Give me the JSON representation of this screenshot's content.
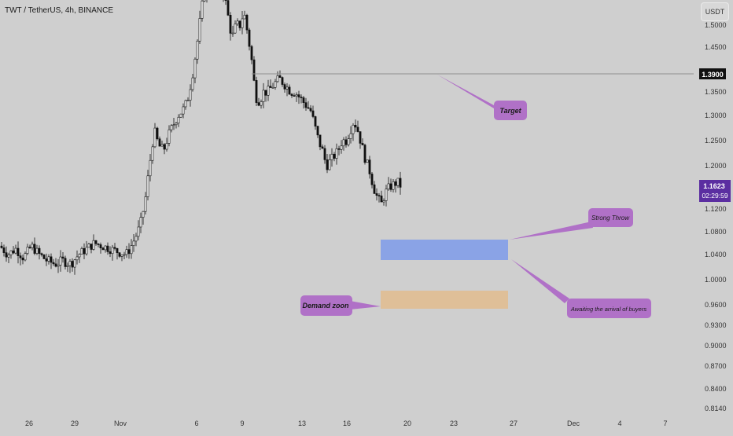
{
  "header": {
    "symbol": "TWT / TetherUS, 4h, BINANCE",
    "currency": "USDT"
  },
  "colors": {
    "background": "#cfcfcf",
    "candle": "#111111",
    "bubble": "#b071c7",
    "blue_zone": "#8aa3e6",
    "demand_zone": "#dfbf98",
    "price_tag": "#5b2ea1"
  },
  "chart_data": {
    "type": "candlestick",
    "title": "TWT / TetherUS, 4h, BINANCE",
    "y_axis": {
      "scale": "log",
      "range": [
        0.8,
        1.62
      ],
      "ticks": [
        "1.5000",
        "1.4500",
        "1.3500",
        "1.3000",
        "1.2500",
        "1.2000",
        "1.1200",
        "1.0800",
        "1.0400",
        "1.0000",
        "0.9600",
        "0.9300",
        "0.9000",
        "0.8700",
        "0.8400",
        "0.8140"
      ]
    },
    "x_axis": {
      "ticks": [
        "26",
        "29",
        "Nov",
        "6",
        "9",
        "13",
        "16",
        "20",
        "23",
        "27",
        "Dec",
        "4",
        "7"
      ]
    },
    "price_path": [
      [
        0,
        1.055
      ],
      [
        10,
        1.04
      ],
      [
        20,
        1.05
      ],
      [
        30,
        1.035
      ],
      [
        40,
        1.055
      ],
      [
        50,
        1.04
      ],
      [
        60,
        1.03
      ],
      [
        70,
        1.025
      ],
      [
        80,
        1.03
      ],
      [
        90,
        1.025
      ],
      [
        100,
        1.04
      ],
      [
        110,
        1.05
      ],
      [
        120,
        1.06
      ],
      [
        130,
        1.055
      ],
      [
        140,
        1.05
      ],
      [
        150,
        1.045
      ],
      [
        160,
        1.04
      ],
      [
        165,
        1.05
      ],
      [
        172,
        1.07
      ],
      [
        178,
        1.09
      ],
      [
        184,
        1.13
      ],
      [
        190,
        1.2
      ],
      [
        196,
        1.27
      ],
      [
        202,
        1.24
      ],
      [
        208,
        1.23
      ],
      [
        214,
        1.26
      ],
      [
        220,
        1.28
      ],
      [
        226,
        1.3
      ],
      [
        232,
        1.31
      ],
      [
        238,
        1.33
      ],
      [
        244,
        1.38
      ],
      [
        250,
        1.45
      ],
      [
        255,
        1.52
      ],
      [
        260,
        1.58
      ],
      [
        265,
        1.6
      ],
      [
        270,
        1.59
      ],
      [
        275,
        1.62
      ],
      [
        280,
        1.61
      ],
      [
        285,
        1.57
      ],
      [
        290,
        1.52
      ],
      [
        295,
        1.47
      ],
      [
        300,
        1.5
      ],
      [
        305,
        1.5
      ],
      [
        310,
        1.53
      ],
      [
        315,
        1.48
      ],
      [
        320,
        1.42
      ],
      [
        325,
        1.34
      ],
      [
        330,
        1.33
      ],
      [
        335,
        1.35
      ],
      [
        340,
        1.35
      ],
      [
        345,
        1.36
      ],
      [
        350,
        1.37
      ],
      [
        355,
        1.38
      ],
      [
        360,
        1.37
      ],
      [
        365,
        1.36
      ],
      [
        370,
        1.35
      ],
      [
        375,
        1.35
      ],
      [
        380,
        1.34
      ],
      [
        385,
        1.33
      ],
      [
        390,
        1.32
      ],
      [
        395,
        1.31
      ],
      [
        400,
        1.28
      ],
      [
        405,
        1.25
      ],
      [
        410,
        1.23
      ],
      [
        415,
        1.2
      ],
      [
        420,
        1.21
      ],
      [
        425,
        1.22
      ],
      [
        430,
        1.23
      ],
      [
        435,
        1.25
      ],
      [
        440,
        1.25
      ],
      [
        445,
        1.27
      ],
      [
        450,
        1.29
      ],
      [
        455,
        1.27
      ],
      [
        460,
        1.24
      ],
      [
        465,
        1.21
      ],
      [
        470,
        1.19
      ],
      [
        475,
        1.16
      ],
      [
        480,
        1.14
      ],
      [
        485,
        1.13
      ],
      [
        490,
        1.15
      ],
      [
        495,
        1.16
      ],
      [
        500,
        1.165
      ],
      [
        505,
        1.17
      ],
      [
        510,
        1.162
      ]
    ],
    "last_price": "1.1623",
    "countdown": "02:29:59",
    "target_price": "1.3900",
    "zones": [
      {
        "name": "Strong Throw zone",
        "low": 1.035,
        "high": 1.066
      },
      {
        "name": "Demand zone",
        "low": 0.958,
        "high": 0.982
      }
    ],
    "annotations": [
      {
        "text": "Target"
      },
      {
        "text": "Strong Throw"
      },
      {
        "text": "Awaiting the arrival of buyers"
      },
      {
        "text": "Demand zoon"
      }
    ]
  }
}
